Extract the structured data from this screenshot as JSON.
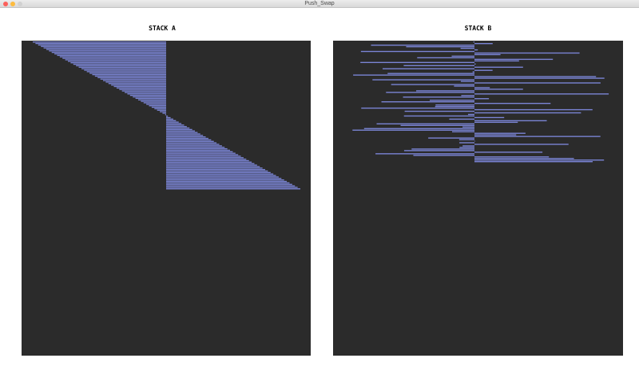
{
  "window": {
    "title": "Push_Swap"
  },
  "colors": {
    "bar": "#7b85d6",
    "panel": "#2b2b2b"
  },
  "stack_a": {
    "label": "STACK A",
    "count": 100,
    "description": "values 1..100 shown sorted; bars span from split to value end"
  },
  "stack_b": {
    "label": "STACK B",
    "count": 77
  }
}
